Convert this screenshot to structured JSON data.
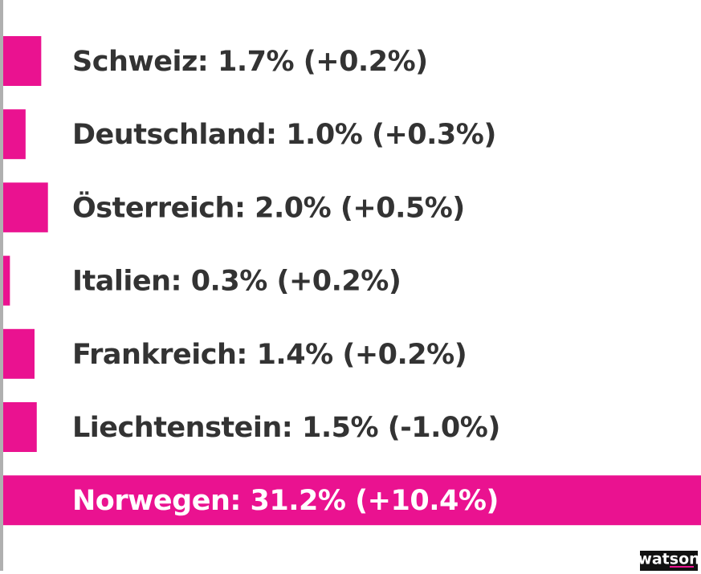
{
  "chart_data": {
    "type": "bar",
    "orientation": "horizontal",
    "color": "#ea1290",
    "categories": [
      "Schweiz: 1.7% (+0.2%)",
      "Deutschland: 1.0% (+0.3%)",
      "Österreich: 2.0% (+0.5%)",
      "Italien: 0.3% (+0.2%)",
      "Frankreich: 1.4% (+0.2%)",
      "Liechtenstein: 1.5% (-1.0%)",
      "Norwegen: 31.2% (+10.4%)"
    ],
    "values": [
      1.7,
      1.0,
      2.0,
      0.3,
      1.4,
      1.5,
      31.2
    ],
    "source": "watson"
  }
}
